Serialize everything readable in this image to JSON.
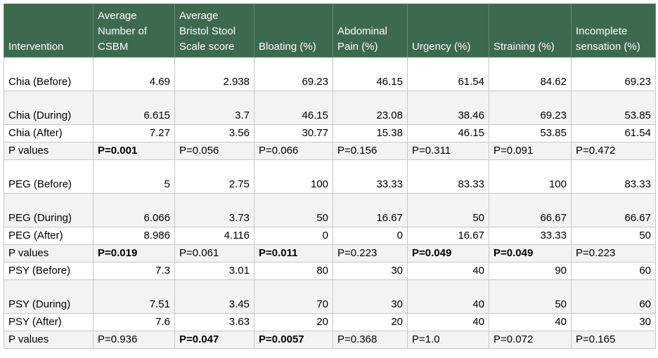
{
  "headers": [
    "Intervention",
    "Average Number of CSBM",
    "Average Bristol Stool Scale score",
    "Bloating (%)",
    "Abdominal Pain (%)",
    "Urgency (%)",
    "Straining (%)",
    "Incomplete sensation (%)"
  ],
  "rows": [
    {
      "label": "Chia (Before)",
      "cells": [
        "4.69",
        "2.938",
        "69.23",
        "46.15",
        "61.54",
        "84.62",
        "69.23"
      ]
    },
    {
      "label": "Chia (During)",
      "cells": [
        "6.615",
        "3.7",
        "46.15",
        "23.08",
        "38.46",
        "69.23",
        "53.85"
      ]
    },
    {
      "label": "Chia (After)",
      "cells": [
        "7.27",
        "3.56",
        "30.77",
        "15.38",
        "46.15",
        "53.85",
        "61.54"
      ]
    },
    {
      "label": "P values",
      "cells": [
        "P=0.001",
        "P=0.056",
        "P=0.066",
        "P=0.156",
        "P=0.311",
        "P=0.091",
        "P=0.472"
      ]
    },
    {
      "label": "PEG (Before)",
      "cells": [
        "5",
        "2.75",
        "100",
        "33.33",
        "83.33",
        "100",
        "83.33"
      ]
    },
    {
      "label": "PEG (During)",
      "cells": [
        "6.066",
        "3.73",
        "50",
        "16.67",
        "50",
        "66.67",
        "66.67"
      ]
    },
    {
      "label": "PEG (After)",
      "cells": [
        "8.986",
        "4.116",
        "0",
        "0",
        "16.67",
        "33.33",
        "50"
      ]
    },
    {
      "label": "P values",
      "cells": [
        "P=0.019",
        "P=0.061",
        "P=0.011",
        "P=0.223",
        "P=0.049",
        "P=0.049",
        "P=0.223"
      ]
    },
    {
      "label": "PSY (Before)",
      "cells": [
        "7.3",
        "3.01",
        "80",
        "30",
        "40",
        "90",
        "60"
      ]
    },
    {
      "label": "PSY (During)",
      "cells": [
        "7.51",
        "3.45",
        "70",
        "30",
        "40",
        "50",
        "60"
      ]
    },
    {
      "label": "PSY (After)",
      "cells": [
        "7.6",
        "3.63",
        "20",
        "20",
        "40",
        "40",
        "30"
      ]
    },
    {
      "label": "P values",
      "cells": [
        "P=0.936",
        "P=0.047",
        "P=0.0057",
        "P=0.368",
        "P=1.0",
        "P=0.072",
        "P=0.165"
      ]
    }
  ]
}
